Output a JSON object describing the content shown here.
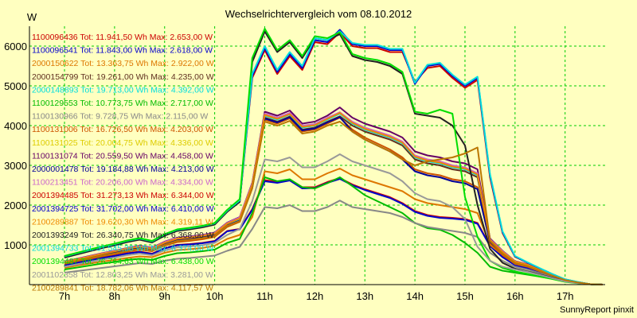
{
  "chart_data": {
    "type": "line",
    "title": "Wechselrichtervergleich vom 08.10.2012",
    "ylabel": "W",
    "xlabel": "",
    "credit": "SunnyReport pinxit",
    "ylim": [
      0,
      6500
    ],
    "xlim": [
      6.3,
      17.8
    ],
    "yticks": [
      1000,
      2000,
      3000,
      4000,
      5000,
      6000
    ],
    "xticks": [
      {
        "value": 7,
        "label": "7h"
      },
      {
        "value": 8,
        "label": "8h"
      },
      {
        "value": 9,
        "label": "9h"
      },
      {
        "value": 10,
        "label": "10h"
      },
      {
        "value": 11,
        "label": "11h"
      },
      {
        "value": 12,
        "label": "12h"
      },
      {
        "value": 13,
        "label": "13h"
      },
      {
        "value": 14,
        "label": "14h"
      },
      {
        "value": 15,
        "label": "15h"
      },
      {
        "value": 16,
        "label": "16h"
      },
      {
        "value": 17,
        "label": "17h"
      }
    ],
    "grid": true,
    "legend_position": "top-left",
    "x": [
      7.0,
      7.25,
      7.5,
      7.75,
      8.0,
      8.25,
      8.5,
      8.75,
      9.0,
      9.25,
      9.5,
      9.75,
      10.0,
      10.25,
      10.5,
      10.75,
      11.0,
      11.25,
      11.5,
      11.75,
      12.0,
      12.25,
      12.5,
      12.75,
      13.0,
      13.25,
      13.5,
      13.75,
      14.0,
      14.25,
      14.5,
      14.75,
      15.0,
      15.25,
      15.5,
      15.75,
      16.0,
      16.25,
      16.5,
      16.75,
      17.0,
      17.25,
      17.5,
      17.75
    ],
    "series": [
      {
        "name": "1100096436",
        "label": "1100096436 Tot: 11.941,50 Wh Max: 2.653,00 W",
        "color": "#cc0000",
        "values": [
          500,
          560,
          620,
          680,
          730,
          790,
          830,
          780,
          920,
          1000,
          1020,
          1050,
          1100,
          1350,
          1400,
          1900,
          2630,
          2580,
          2640,
          2450,
          2450,
          2580,
          2680,
          2520,
          2400,
          2300,
          2200,
          2050,
          1850,
          1750,
          1700,
          1680,
          1650,
          1550,
          980,
          700,
          500,
          420,
          300,
          200,
          100,
          50,
          10,
          0
        ]
      },
      {
        "name": "1100096541",
        "label": "1100096541 Tot: 11.843,00 Wh Max: 2.618,00 W",
        "color": "#0000cc",
        "values": [
          490,
          550,
          610,
          670,
          720,
          780,
          820,
          770,
          910,
          990,
          1010,
          1040,
          1090,
          1340,
          1390,
          1880,
          2600,
          2560,
          2620,
          2420,
          2430,
          2560,
          2660,
          2500,
          2380,
          2280,
          2180,
          2030,
          1830,
          1730,
          1680,
          1660,
          1630,
          1530,
          970,
          690,
          490,
          410,
          290,
          190,
          95,
          45,
          10,
          0
        ]
      },
      {
        "name": "2000150622",
        "label": "2000150622 Tot: 13.363,75 Wh Max: 2.922,00 W",
        "color": "#dd7700",
        "values": [
          420,
          480,
          530,
          580,
          620,
          670,
          710,
          690,
          800,
          870,
          890,
          920,
          980,
          1150,
          1250,
          1700,
          2850,
          2800,
          2900,
          2650,
          2650,
          2800,
          2920,
          2750,
          2650,
          2550,
          2450,
          2350,
          2150,
          2050,
          2000,
          1950,
          1900,
          1800,
          1000,
          750,
          520,
          450,
          330,
          220,
          110,
          55,
          10,
          0
        ]
      },
      {
        "name": "2000154799",
        "label": "2000154799 Tot: 19.261,00 Wh Max: 4.235,00 W",
        "color": "#603020",
        "values": [
          550,
          620,
          690,
          760,
          810,
          880,
          930,
          880,
          1030,
          1130,
          1160,
          1200,
          1260,
          1500,
          1620,
          2450,
          4200,
          4100,
          4230,
          3900,
          3950,
          4100,
          4235,
          4000,
          3850,
          3750,
          3650,
          3500,
          3150,
          3050,
          3000,
          2900,
          2850,
          2700,
          1100,
          800,
          560,
          480,
          350,
          230,
          115,
          55,
          10,
          0
        ]
      },
      {
        "name": "2000148893",
        "label": "2000148893 Tot: 19.713,00 Wh Max: 4.392,00 W",
        "color": "#00dddd",
        "values": [
          560,
          630,
          700,
          770,
          830,
          900,
          950,
          900,
          1050,
          1150,
          1180,
          1220,
          1280,
          1520,
          1650,
          2500,
          4250,
          4150,
          4280,
          3950,
          4000,
          4150,
          4300,
          4050,
          3900,
          3800,
          3700,
          3550,
          3200,
          3100,
          3050,
          2950,
          2900,
          2750,
          1120,
          820,
          570,
          490,
          360,
          240,
          120,
          60,
          10,
          0
        ]
      },
      {
        "name": "1100129553",
        "label": "1100129553 Tot: 10.773,75 Wh Max: 2.717,00 W",
        "color": "#00bb00",
        "values": [
          380,
          430,
          480,
          530,
          570,
          620,
          650,
          620,
          720,
          790,
          810,
          840,
          880,
          1050,
          1150,
          1800,
          2700,
          2600,
          2650,
          2450,
          2420,
          2550,
          2700,
          2480,
          2250,
          2100,
          1950,
          1800,
          1550,
          1420,
          1380,
          1250,
          1050,
          800,
          450,
          350,
          300,
          250,
          200,
          150,
          100,
          50,
          10,
          0
        ]
      },
      {
        "name": "1100130966",
        "label": "1100130966 Tot: 9.728,75 Wh Max: 2.115,00 W",
        "color": "#888888",
        "values": [
          300,
          340,
          380,
          420,
          460,
          500,
          540,
          520,
          600,
          650,
          670,
          700,
          730,
          850,
          950,
          1400,
          1950,
          1920,
          2000,
          1850,
          1850,
          1950,
          2115,
          1950,
          1900,
          1850,
          1800,
          1700,
          1550,
          1450,
          1400,
          1350,
          1300,
          1200,
          800,
          600,
          450,
          380,
          280,
          180,
          90,
          45,
          10,
          0
        ]
      },
      {
        "name": "1100131006",
        "label": "1100131006 Tot: 16.726,50 Wh Max: 4.203,00 W",
        "color": "#cc5500",
        "values": [
          520,
          590,
          650,
          710,
          770,
          830,
          880,
          840,
          980,
          1070,
          1100,
          1140,
          1200,
          1450,
          1580,
          2420,
          4150,
          4050,
          4180,
          3850,
          3900,
          4050,
          4200,
          3900,
          3700,
          3550,
          3400,
          3200,
          2900,
          2800,
          2750,
          2650,
          2600,
          2450,
          1050,
          760,
          530,
          460,
          340,
          225,
          112,
          55,
          10,
          0
        ]
      },
      {
        "name": "1100131025",
        "label": "1100131025 Tot: 20.004,75 Wh Max: 4.336,00 W",
        "color": "#ddcc00",
        "values": [
          570,
          640,
          710,
          780,
          840,
          910,
          960,
          910,
          1060,
          1160,
          1190,
          1230,
          1290,
          1540,
          1670,
          2520,
          4280,
          4180,
          4300,
          3980,
          4020,
          4180,
          4336,
          4080,
          3930,
          3830,
          3730,
          3580,
          3230,
          3130,
          3080,
          2980,
          2930,
          2780,
          1130,
          830,
          580,
          500,
          365,
          245,
          122,
          60,
          10,
          0
        ]
      },
      {
        "name": "1100131074",
        "label": "1100131074 Tot: 20.559,50 Wh Max: 4.458,00 W",
        "color": "#660066",
        "values": [
          580,
          650,
          720,
          790,
          850,
          920,
          980,
          930,
          1080,
          1180,
          1210,
          1250,
          1310,
          1560,
          1700,
          2560,
          4350,
          4250,
          4380,
          4050,
          4100,
          4250,
          4458,
          4200,
          4050,
          3950,
          3850,
          3700,
          3350,
          3250,
          3200,
          3100,
          3050,
          2900,
          1160,
          850,
          590,
          510,
          370,
          250,
          125,
          62,
          10,
          0
        ]
      },
      {
        "name": "2000001478",
        "label": "2000001478 Tot: 19.184,88 Wh Max: 4.213,00 W",
        "color": "#000099",
        "values": [
          540,
          610,
          680,
          750,
          800,
          870,
          920,
          870,
          1020,
          1120,
          1150,
          1190,
          1250,
          1490,
          1610,
          2440,
          4180,
          4080,
          4210,
          3880,
          3930,
          4080,
          4213,
          3850,
          3650,
          3500,
          3350,
          3150,
          2850,
          2750,
          2700,
          2600,
          2550,
          2400,
          1080,
          790,
          550,
          470,
          345,
          228,
          114,
          56,
          10,
          0
        ]
      },
      {
        "name": "1100213451",
        "label": "1100213451 Tot: 20.206,00 Wh Max: 4.334,00 W",
        "color": "#cc66cc",
        "values": [
          575,
          645,
          715,
          785,
          845,
          915,
          970,
          920,
          1070,
          1170,
          1200,
          1240,
          1300,
          1550,
          1690,
          2540,
          4300,
          4200,
          4320,
          4000,
          4040,
          4200,
          4334,
          4100,
          3950,
          3850,
          3750,
          3600,
          3250,
          3150,
          3100,
          3000,
          2950,
          2800,
          1140,
          840,
          585,
          505,
          368,
          247,
          123,
          61,
          10,
          0
        ]
      },
      {
        "name": "2001394485",
        "label": "2001394485 Tot: 31.273,13 Wh Max: 6.344,00 W",
        "color": "#cc0000",
        "values": [
          700,
          780,
          860,
          940,
          1010,
          1090,
          1150,
          1080,
          1250,
          1370,
          1410,
          1460,
          1530,
          1850,
          2100,
          5200,
          5900,
          5300,
          5750,
          5400,
          6100,
          6050,
          6344,
          6000,
          5950,
          5950,
          5850,
          5850,
          5100,
          5450,
          5500,
          5200,
          4950,
          5150,
          2700,
          1300,
          700,
          550,
          400,
          260,
          130,
          65,
          10,
          0
        ]
      },
      {
        "name": "2001394725",
        "label": "2001394725 Tot: 31.702,00 Wh Max: 6.410,00 W",
        "color": "#0000cc",
        "values": [
          705,
          785,
          865,
          945,
          1015,
          1095,
          1155,
          1085,
          1255,
          1375,
          1415,
          1465,
          1535,
          1855,
          2110,
          5250,
          5950,
          5350,
          5800,
          5450,
          6150,
          6100,
          6410,
          6050,
          6000,
          6000,
          5900,
          5900,
          5050,
          5500,
          5550,
          5250,
          5000,
          5200,
          2750,
          1320,
          710,
          555,
          405,
          262,
          131,
          66,
          10,
          0
        ]
      },
      {
        "name": "2100289887",
        "label": "2100289887 Tot: 19.620,30 Wh Max: 4.319,11 W",
        "color": "#ee8800",
        "values": [
          565,
          635,
          705,
          775,
          835,
          905,
          955,
          905,
          1055,
          1155,
          1185,
          1225,
          1285,
          1535,
          1665,
          2510,
          4270,
          4170,
          4290,
          3970,
          4010,
          4170,
          4319,
          4070,
          3920,
          3820,
          3720,
          3570,
          3220,
          3120,
          3070,
          2970,
          2920,
          2770,
          1125,
          825,
          578,
          498,
          363,
          244,
          121,
          60,
          10,
          0
        ]
      },
      {
        "name": "2001393249",
        "label": "2001393249 Tot: 26.340,75 Wh Max: 6.368,00 W",
        "color": "#222222",
        "values": [
          680,
          760,
          840,
          920,
          990,
          1070,
          1130,
          1060,
          1230,
          1350,
          1390,
          1440,
          1510,
          1830,
          2080,
          5600,
          6368,
          5850,
          6100,
          5700,
          6200,
          6150,
          6300,
          5750,
          5650,
          5600,
          5500,
          5300,
          4300,
          4250,
          4200,
          4000,
          3500,
          2000,
          900,
          550,
          400,
          330,
          250,
          170,
          85,
          40,
          10,
          0
        ]
      },
      {
        "name": "2001394733",
        "label": "2001394733 Tot: 31.545,38 Wh Max: 6.374,00 W",
        "color": "#00dddd",
        "values": [
          710,
          790,
          870,
          950,
          1020,
          1100,
          1160,
          1090,
          1260,
          1380,
          1420,
          1470,
          1540,
          1860,
          2120,
          5300,
          6000,
          5400,
          5850,
          5500,
          6200,
          6150,
          6374,
          6080,
          6030,
          6030,
          5930,
          5930,
          5080,
          5530,
          5580,
          5280,
          5030,
          5230,
          2780,
          1340,
          720,
          560,
          410,
          265,
          132,
          67,
          10,
          0
        ]
      },
      {
        "name": "2001394487",
        "label": "2001394487 Tot: 26.764,63 Wh Max: 6.438,00 W",
        "color": "#00dd00",
        "values": [
          720,
          800,
          880,
          960,
          1030,
          1110,
          1170,
          1100,
          1270,
          1390,
          1430,
          1480,
          1550,
          1880,
          2150,
          5700,
          6438,
          5900,
          6150,
          5750,
          6250,
          6200,
          6350,
          5800,
          5700,
          5650,
          5550,
          5350,
          4350,
          4300,
          4400,
          4300,
          2200,
          1200,
          600,
          420,
          330,
          270,
          200,
          140,
          70,
          35,
          10,
          0
        ]
      },
      {
        "name": "2001102358",
        "label": "2001102358 Tot: 12.803,25 Wh Max: 3.281,00 W",
        "color": "#999999",
        "values": [
          450,
          510,
          570,
          630,
          680,
          740,
          780,
          740,
          860,
          940,
          960,
          990,
          1050,
          1250,
          1400,
          2100,
          3150,
          3100,
          3200,
          2950,
          2950,
          3100,
          3281,
          3100,
          3000,
          2900,
          2800,
          2600,
          2300,
          2150,
          2100,
          1950,
          1650,
          950,
          600,
          450,
          380,
          320,
          240,
          160,
          80,
          40,
          10,
          0
        ]
      },
      {
        "name": "2100289841",
        "label": "2100289841 Tot: 18.782,06 Wh Max: 4.117,57 W",
        "color": "#bb7700",
        "values": [
          530,
          600,
          665,
          730,
          785,
          850,
          900,
          860,
          1000,
          1100,
          1130,
          1170,
          1230,
          1480,
          1600,
          2430,
          4100,
          4000,
          4117,
          3800,
          3850,
          4000,
          4100,
          3850,
          3650,
          3500,
          3350,
          3150,
          3000,
          3100,
          3150,
          3200,
          3300,
          3450,
          1100,
          780,
          545,
          465,
          340,
          226,
          113,
          55,
          10,
          0
        ]
      }
    ]
  }
}
